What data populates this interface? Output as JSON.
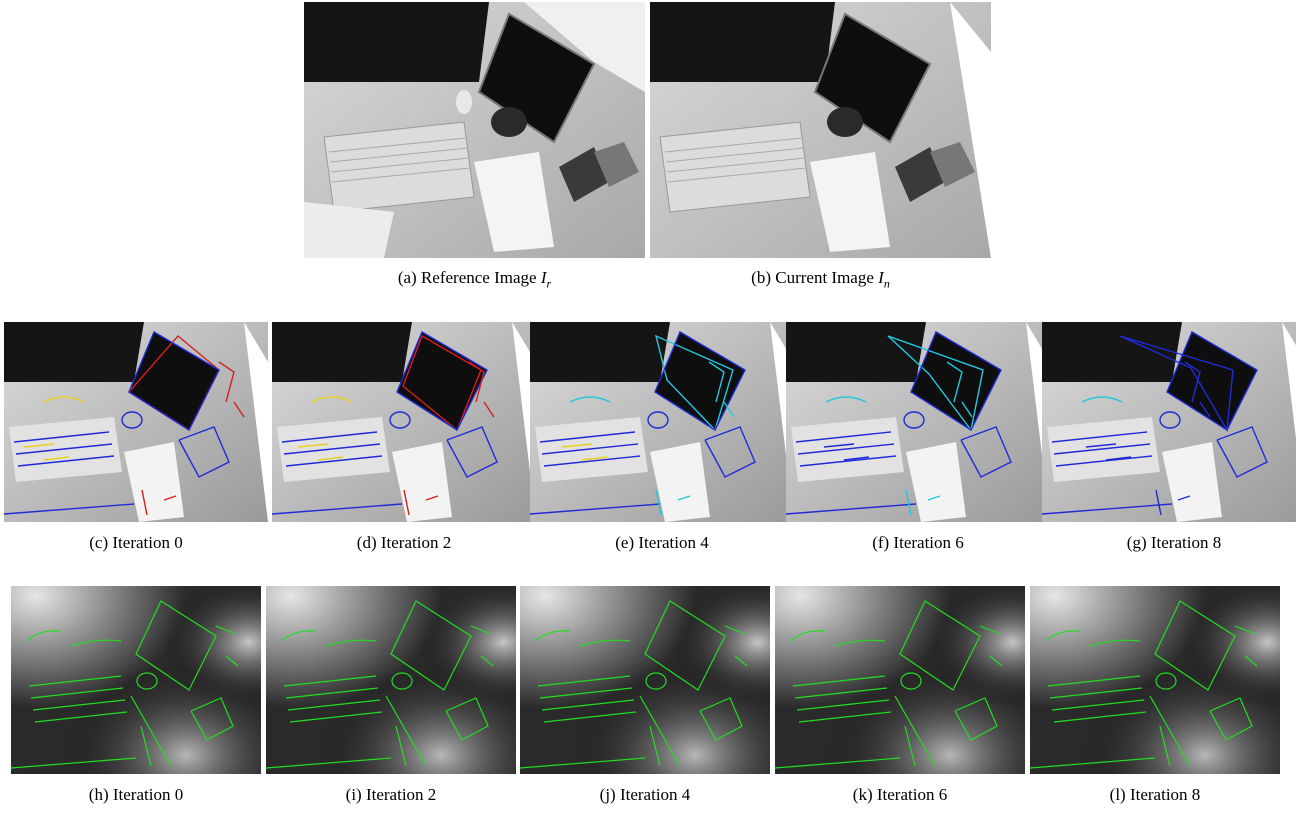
{
  "figure": {
    "row1": [
      {
        "id": "a",
        "label": "(a) Reference Image",
        "symbol": "I",
        "sub": "r"
      },
      {
        "id": "b",
        "label": "(b) Current Image",
        "symbol": "I",
        "sub": "n"
      }
    ],
    "row2": [
      {
        "id": "c",
        "label": "(c) Iteration 0"
      },
      {
        "id": "d",
        "label": "(d) Iteration 2"
      },
      {
        "id": "e",
        "label": "(e) Iteration 4"
      },
      {
        "id": "f",
        "label": "(f) Iteration 6"
      },
      {
        "id": "g",
        "label": "(g) Iteration 8"
      }
    ],
    "row3": [
      {
        "id": "h",
        "label": "(h) Iteration 0"
      },
      {
        "id": "i",
        "label": "(i) Iteration 2"
      },
      {
        "id": "j",
        "label": "(j) Iteration 4"
      },
      {
        "id": "k",
        "label": "(k) Iteration 6"
      },
      {
        "id": "l",
        "label": "(l) Iteration 8"
      }
    ]
  },
  "colors": {
    "edge_green": "#22dd22",
    "edge_blue": "#1f2bd6",
    "edge_red": "#d81e1e",
    "edge_yellow": "#e8d020",
    "edge_cyan": "#20c8e0"
  }
}
